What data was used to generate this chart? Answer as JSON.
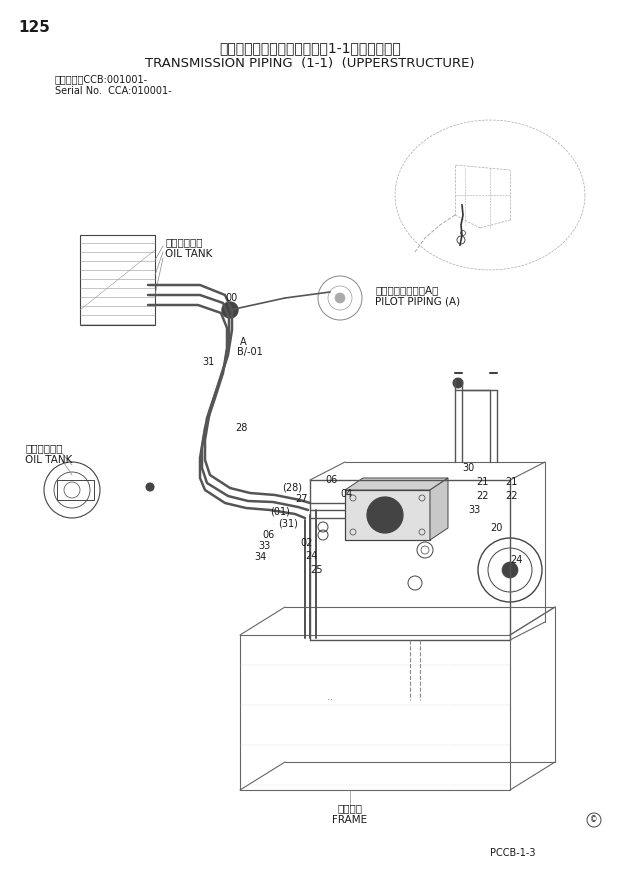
{
  "page_number": "125",
  "title_japanese": "トランスミッション配管　（1-1）（旋回体）",
  "title_english": "TRANSMISSION PIPING  (1-1)  (UPPERSTRUCTURE)",
  "serial_line1": "適用号機　CCB:001001-",
  "serial_line2": "Serial No.  CCA:010001-",
  "pccb_label": "PCCB-1-3",
  "bg_color": "#ffffff",
  "text_color": "#1a1a1a",
  "diagram_color": "#444444",
  "lc": "#888888",
  "label_fontsize": 7.0,
  "title_jp_fontsize": 10,
  "title_en_fontsize": 9.5
}
